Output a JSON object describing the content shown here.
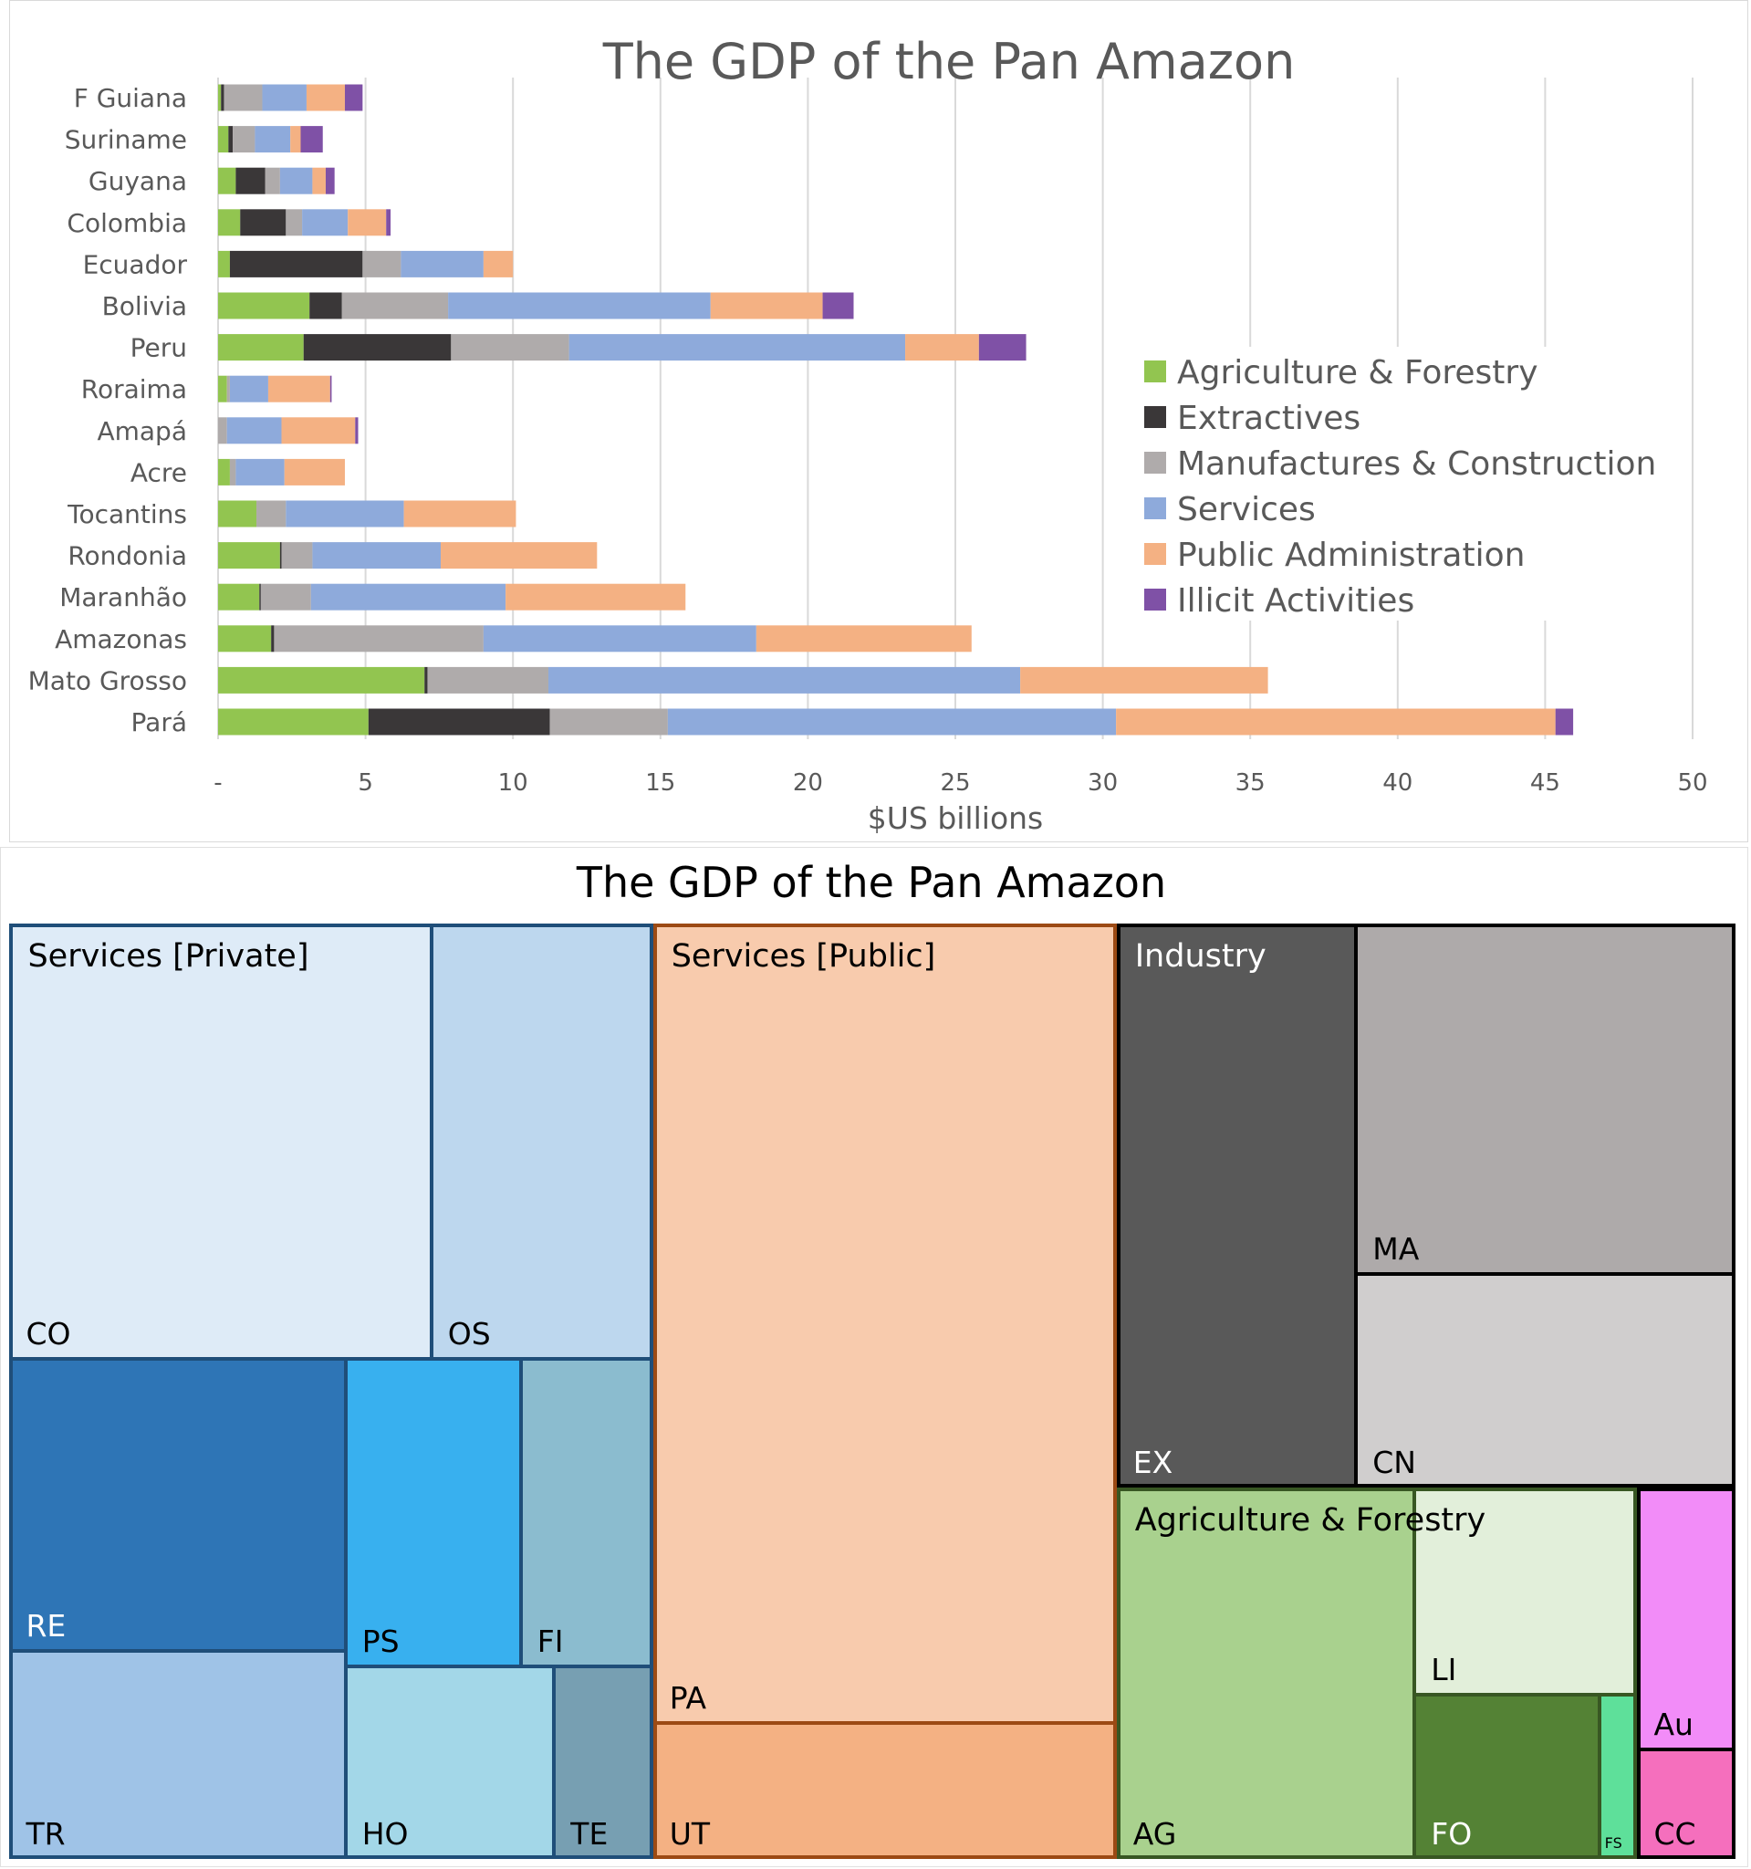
{
  "chart_data": [
    {
      "type": "bar",
      "orientation": "horizontal",
      "stacked": true,
      "title": "The GDP of the Pan Amazon",
      "xlabel": "$US billions",
      "ylabel": "",
      "xlim": [
        0,
        50
      ],
      "xticks": [
        "-",
        "5",
        "10",
        "15",
        "20",
        "25",
        "30",
        "35",
        "40",
        "45",
        "50"
      ],
      "grid": true,
      "legend_position": "right",
      "categories": [
        "F Guiana",
        "Suriname",
        "Guyana",
        "Colombia",
        "Ecuador",
        "Bolivia",
        "Peru",
        "Roraima",
        "Amapá",
        "Acre",
        "Tocantins",
        "Rondonia",
        "Maranhão",
        "Amazonas",
        "Mato Grosso",
        "Pará"
      ],
      "series": [
        {
          "name": "Agriculture & Forestry",
          "color": "#92c550",
          "values": [
            0.1,
            0.35,
            0.6,
            0.75,
            0.4,
            3.1,
            2.9,
            0.3,
            0.0,
            0.4,
            1.3,
            2.1,
            1.4,
            1.8,
            7.0,
            5.1
          ]
        },
        {
          "name": "Extractives",
          "color": "#3a3738",
          "values": [
            0.1,
            0.15,
            1.0,
            1.55,
            4.5,
            1.1,
            5.0,
            0.0,
            0.0,
            0.0,
            0.0,
            0.05,
            0.05,
            0.1,
            0.1,
            6.15
          ]
        },
        {
          "name": "Manufactures & Construction",
          "color": "#afabab",
          "values": [
            1.3,
            0.75,
            0.5,
            0.55,
            1.3,
            3.6,
            4.0,
            0.1,
            0.3,
            0.2,
            1.0,
            1.05,
            1.7,
            7.1,
            4.1,
            4.0
          ]
        },
        {
          "name": "Services",
          "color": "#8eaadb",
          "values": [
            1.5,
            1.2,
            1.1,
            1.55,
            2.8,
            8.9,
            11.4,
            1.3,
            1.85,
            1.65,
            4.0,
            4.35,
            6.6,
            9.25,
            16.0,
            15.2
          ]
        },
        {
          "name": "Public Administration",
          "color": "#f4b183",
          "values": [
            1.3,
            0.35,
            0.45,
            1.3,
            1.0,
            3.8,
            2.5,
            2.1,
            2.5,
            2.05,
            3.8,
            5.3,
            6.1,
            7.3,
            8.4,
            14.9
          ]
        },
        {
          "name": "Illicit Activities",
          "color": "#7f51a6",
          "values": [
            0.6,
            0.75,
            0.3,
            0.15,
            0.0,
            1.05,
            1.6,
            0.05,
            0.1,
            0.0,
            0.0,
            0.0,
            0.0,
            0.0,
            0.0,
            0.6
          ]
        }
      ]
    },
    {
      "type": "treemap",
      "title": "The GDP of the Pan Amazon",
      "groups": [
        {
          "name": "Services [Private]",
          "border": "#1f4e79",
          "tiles": [
            {
              "label": "CO",
              "color": "#deebf7"
            },
            {
              "label": "OS",
              "color": "#bdd7ee"
            },
            {
              "label": "RE",
              "color": "#2e75b6"
            },
            {
              "label": "PS",
              "color": "#38b0ef"
            },
            {
              "label": "FI",
              "color": "#8bbccf"
            },
            {
              "label": "TR",
              "color": "#9fc3e7"
            },
            {
              "label": "HO",
              "color": "#a3d7e8"
            },
            {
              "label": "TE",
              "color": "#779fb2"
            }
          ]
        },
        {
          "name": "Services [Public]",
          "border": "#9c4a14",
          "tiles": [
            {
              "label": "PA",
              "color": "#f8cbad"
            },
            {
              "label": "UT",
              "color": "#f4b183"
            }
          ]
        },
        {
          "name": "Industry",
          "border": "#000000",
          "tiles": [
            {
              "label": "EX",
              "color": "#595959"
            },
            {
              "label": "MA",
              "color": "#aeaaaa"
            },
            {
              "label": "CN",
              "color": "#d0cece"
            }
          ]
        },
        {
          "name": "Agriculture & Forestry",
          "border": "#385723",
          "tiles": [
            {
              "label": "AG",
              "color": "#a9d18e"
            },
            {
              "label": "LI",
              "color": "#e2efda"
            },
            {
              "label": "FO",
              "color": "#548235"
            },
            {
              "label": "FS",
              "color": "#5ee09a"
            }
          ]
        },
        {
          "name": "",
          "border": "#000000",
          "tiles": [
            {
              "label": "Au",
              "color": "#f28cf8"
            },
            {
              "label": "CC",
              "color": "#f56fbd"
            }
          ]
        }
      ]
    }
  ]
}
